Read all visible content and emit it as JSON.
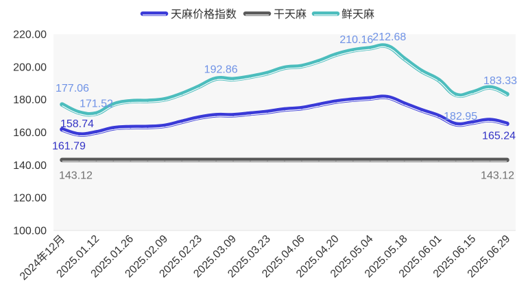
{
  "chart_data": {
    "type": "line",
    "smooth": true,
    "grid": false,
    "legend": "top-center",
    "ylim": [
      100,
      220
    ],
    "y_tick_labels": [
      "100.00",
      "120.00",
      "140.00",
      "160.00",
      "180.00",
      "200.00",
      "220.00"
    ],
    "categories": [
      "2024年12月",
      "",
      "2025.01.12",
      "",
      "2025.01.26",
      "",
      "2025.02.09",
      "",
      "2025.02.23",
      "",
      "2025.03.09",
      "",
      "2025.03.23",
      "",
      "2025.04.06",
      "",
      "2025.04.20",
      "",
      "2025.05.04",
      "",
      "2025.05.18",
      "",
      "2025.06.01",
      "",
      "2025.06.15",
      "",
      "2025.06.29"
    ],
    "series": [
      {
        "name": "天麻价格指数",
        "color": "#3a3ad7",
        "label_color": "#3434c6",
        "values": [
          161.79,
          158.74,
          160.0,
          162.5,
          163.2,
          163.3,
          164.0,
          166.5,
          169.0,
          170.5,
          170.5,
          171.5,
          172.5,
          174.0,
          174.8,
          176.8,
          178.8,
          180.0,
          180.8,
          181.5,
          177.5,
          173.5,
          170.0,
          165.0,
          166.0,
          167.5,
          165.24
        ],
        "point_labels": [
          "161.79",
          "158.74",
          "",
          "",
          "",
          "",
          "",
          "",
          "",
          "",
          "",
          "",
          "",
          "",
          "",
          "",
          "",
          "",
          "",
          "",
          "",
          "",
          "",
          "",
          "",
          "",
          "165.24"
        ]
      },
      {
        "name": "干天麻",
        "color": "#5a5a5a",
        "label_color": "#707070",
        "values": [
          143.12,
          143.12,
          143.12,
          143.12,
          143.12,
          143.12,
          143.12,
          143.12,
          143.12,
          143.12,
          143.12,
          143.12,
          143.12,
          143.12,
          143.12,
          143.12,
          143.12,
          143.12,
          143.12,
          143.12,
          143.12,
          143.12,
          143.12,
          143.12,
          143.12,
          143.12,
          143.12
        ],
        "point_labels": [
          "143.12",
          "",
          "",
          "",
          "",
          "",
          "",
          "",
          "",
          "",
          "",
          "",
          "",
          "",
          "",
          "",
          "",
          "",
          "",
          "",
          "",
          "",
          "",
          "",
          "",
          "",
          "143.12"
        ]
      },
      {
        "name": "鲜天麻",
        "color": "#4cbdbd",
        "label_color": "#6f92e6",
        "values": [
          177.06,
          172.1,
          171.52,
          177.0,
          179.0,
          179.2,
          180.2,
          183.5,
          188.0,
          192.86,
          192.5,
          194.0,
          196.2,
          199.5,
          200.5,
          203.5,
          207.5,
          210.16,
          211.5,
          212.68,
          205.0,
          197.5,
          192.0,
          182.95,
          184.5,
          187.5,
          183.33
        ],
        "point_labels": [
          "177.06",
          "",
          "171.52",
          "",
          "",
          "",
          "",
          "",
          "",
          "192.86",
          "",
          "",
          "",
          "",
          "",
          "",
          "",
          "210.16",
          "",
          "212.68",
          "",
          "",
          "",
          "182.95",
          "",
          "",
          "183.33"
        ]
      }
    ]
  }
}
